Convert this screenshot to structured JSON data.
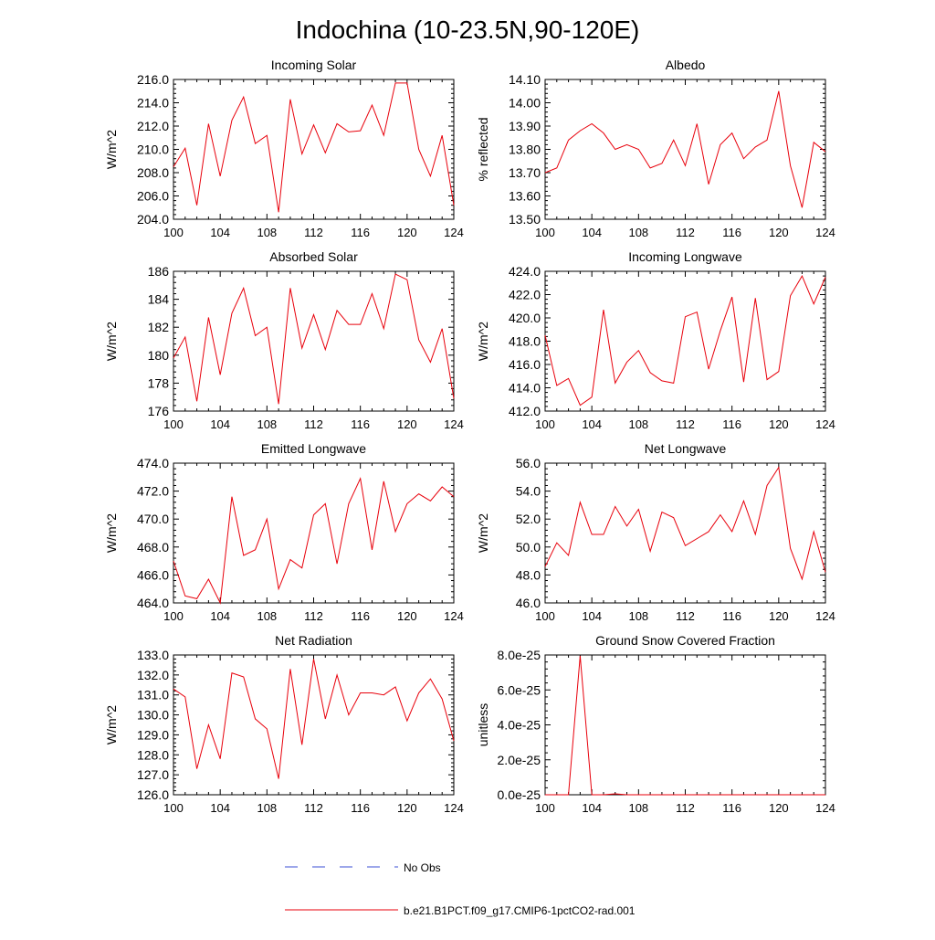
{
  "figure_title": "Indochina (10-23.5N,90-120E)",
  "colors": {
    "model": "#e8000b",
    "obs": "#3b4fd6",
    "axis": "#000000"
  },
  "legend": {
    "obs_label": "No Obs",
    "model_label": "b.e21.B1PCT.f09_g17.CMIP6-1pctCO2-rad.001"
  },
  "chart_data": [
    {
      "type": "line",
      "title": "Incoming Solar",
      "ylabel": "W/m^2",
      "xlim": [
        100,
        124
      ],
      "ylim": [
        204,
        216
      ],
      "xticks": [
        100,
        104,
        108,
        112,
        116,
        120,
        124
      ],
      "yticks": [
        204,
        206,
        208,
        210,
        212,
        214,
        216
      ],
      "ydecimals": 1,
      "x": [
        100,
        101,
        102,
        103,
        104,
        105,
        106,
        107,
        108,
        109,
        110,
        111,
        112,
        113,
        114,
        115,
        116,
        117,
        118,
        119,
        120,
        121,
        122,
        123,
        124
      ],
      "series": [
        {
          "values": [
            208.5,
            210.1,
            205.2,
            212.2,
            207.7,
            212.5,
            214.5,
            210.5,
            211.2,
            204.6,
            214.3,
            209.6,
            212.1,
            209.7,
            212.2,
            211.5,
            211.6,
            213.8,
            211.2,
            215.7,
            215.7,
            210.0,
            207.7,
            211.2,
            205.2
          ]
        }
      ]
    },
    {
      "type": "line",
      "title": "Albedo",
      "ylabel": "% reflected",
      "xlim": [
        100,
        124
      ],
      "ylim": [
        13.5,
        14.1
      ],
      "xticks": [
        100,
        104,
        108,
        112,
        116,
        120,
        124
      ],
      "yticks": [
        13.5,
        13.6,
        13.7,
        13.8,
        13.9,
        14.0,
        14.1
      ],
      "ydecimals": 2,
      "x": [
        100,
        101,
        102,
        103,
        104,
        105,
        106,
        107,
        108,
        109,
        110,
        111,
        112,
        113,
        114,
        115,
        116,
        117,
        118,
        119,
        120,
        121,
        122,
        123,
        124
      ],
      "series": [
        {
          "values": [
            13.7,
            13.72,
            13.84,
            13.88,
            13.91,
            13.87,
            13.8,
            13.82,
            13.8,
            13.72,
            13.74,
            13.84,
            13.73,
            13.91,
            13.65,
            13.82,
            13.87,
            13.76,
            13.81,
            13.84,
            14.05,
            13.73,
            13.55,
            13.83,
            13.79
          ]
        }
      ]
    },
    {
      "type": "line",
      "title": "Absorbed Solar",
      "ylabel": "W/m^2",
      "xlim": [
        100,
        124
      ],
      "ylim": [
        176,
        186
      ],
      "xticks": [
        100,
        104,
        108,
        112,
        116,
        120,
        124
      ],
      "yticks": [
        176,
        178,
        180,
        182,
        184,
        186
      ],
      "ydecimals": 0,
      "x": [
        100,
        101,
        102,
        103,
        104,
        105,
        106,
        107,
        108,
        109,
        110,
        111,
        112,
        113,
        114,
        115,
        116,
        117,
        118,
        119,
        120,
        121,
        122,
        123,
        124
      ],
      "series": [
        {
          "values": [
            179.8,
            181.3,
            176.7,
            182.7,
            178.6,
            183.0,
            184.8,
            181.4,
            182.0,
            176.5,
            184.8,
            180.5,
            182.9,
            180.4,
            183.2,
            182.2,
            182.2,
            184.4,
            181.9,
            185.8,
            185.4,
            181.1,
            179.5,
            181.9,
            176.9
          ]
        }
      ]
    },
    {
      "type": "line",
      "title": "Incoming Longwave",
      "ylabel": "W/m^2",
      "xlim": [
        100,
        124
      ],
      "ylim": [
        412,
        424
      ],
      "xticks": [
        100,
        104,
        108,
        112,
        116,
        120,
        124
      ],
      "yticks": [
        412,
        414,
        416,
        418,
        420,
        422,
        424
      ],
      "ydecimals": 1,
      "x": [
        100,
        101,
        102,
        103,
        104,
        105,
        106,
        107,
        108,
        109,
        110,
        111,
        112,
        113,
        114,
        115,
        116,
        117,
        118,
        119,
        120,
        121,
        122,
        123,
        124
      ],
      "series": [
        {
          "values": [
            418.5,
            414.2,
            414.8,
            412.5,
            413.2,
            420.7,
            414.4,
            416.2,
            417.2,
            415.3,
            414.6,
            414.4,
            420.1,
            420.5,
            415.6,
            418.9,
            421.8,
            414.5,
            421.7,
            414.7,
            415.4,
            421.9,
            423.6,
            421.2,
            423.5
          ]
        }
      ]
    },
    {
      "type": "line",
      "title": "Emitted Longwave",
      "ylabel": "W/m^2",
      "xlim": [
        100,
        124
      ],
      "ylim": [
        464,
        474
      ],
      "xticks": [
        100,
        104,
        108,
        112,
        116,
        120,
        124
      ],
      "yticks": [
        464,
        466,
        468,
        470,
        472,
        474
      ],
      "ydecimals": 1,
      "x": [
        100,
        101,
        102,
        103,
        104,
        105,
        106,
        107,
        108,
        109,
        110,
        111,
        112,
        113,
        114,
        115,
        116,
        117,
        118,
        119,
        120,
        121,
        122,
        123,
        124
      ],
      "series": [
        {
          "values": [
            467.0,
            464.5,
            464.3,
            465.7,
            464.0,
            471.6,
            467.4,
            467.8,
            470.0,
            465.0,
            467.1,
            466.5,
            470.3,
            471.1,
            466.8,
            471.1,
            472.9,
            467.8,
            472.7,
            469.1,
            471.1,
            471.8,
            471.3,
            472.3,
            471.6
          ]
        }
      ]
    },
    {
      "type": "line",
      "title": "Net Longwave",
      "ylabel": "W/m^2",
      "xlim": [
        100,
        124
      ],
      "ylim": [
        46,
        56
      ],
      "xticks": [
        100,
        104,
        108,
        112,
        116,
        120,
        124
      ],
      "yticks": [
        46,
        48,
        50,
        52,
        54,
        56
      ],
      "ydecimals": 1,
      "x": [
        100,
        101,
        102,
        103,
        104,
        105,
        106,
        107,
        108,
        109,
        110,
        111,
        112,
        113,
        114,
        115,
        116,
        117,
        118,
        119,
        120,
        121,
        122,
        123,
        124
      ],
      "series": [
        {
          "values": [
            48.6,
            50.3,
            49.4,
            53.2,
            50.9,
            50.9,
            52.9,
            51.5,
            52.7,
            49.7,
            52.5,
            52.1,
            50.1,
            50.6,
            51.1,
            52.3,
            51.1,
            53.3,
            50.9,
            54.4,
            55.7,
            49.9,
            47.7,
            51.1,
            48.2
          ]
        }
      ]
    },
    {
      "type": "line",
      "title": "Net Radiation",
      "ylabel": "W/m^2",
      "xlim": [
        100,
        124
      ],
      "ylim": [
        126,
        133
      ],
      "xticks": [
        100,
        104,
        108,
        112,
        116,
        120,
        124
      ],
      "yticks": [
        126,
        127,
        128,
        129,
        130,
        131,
        132,
        133
      ],
      "ydecimals": 1,
      "x": [
        100,
        101,
        102,
        103,
        104,
        105,
        106,
        107,
        108,
        109,
        110,
        111,
        112,
        113,
        114,
        115,
        116,
        117,
        118,
        119,
        120,
        121,
        122,
        123,
        124
      ],
      "series": [
        {
          "values": [
            131.3,
            130.9,
            127.3,
            129.5,
            127.8,
            132.1,
            131.9,
            129.8,
            129.3,
            126.8,
            132.3,
            128.5,
            132.8,
            129.8,
            132.0,
            130.0,
            131.1,
            131.1,
            131.0,
            131.4,
            129.7,
            131.1,
            131.8,
            130.8,
            128.7
          ]
        }
      ]
    },
    {
      "type": "line",
      "title": "Ground Snow Covered Fraction",
      "ylabel": "unitless",
      "xlim": [
        100,
        124
      ],
      "ylim": [
        0,
        8e-25
      ],
      "xticks": [
        100,
        104,
        108,
        112,
        116,
        120,
        124
      ],
      "yticks": [
        0,
        2e-25,
        4e-25,
        6e-25,
        8e-25
      ],
      "ytick_labels": [
        "0.0e-25",
        "2.0e-25",
        "4.0e-25",
        "6.0e-25",
        "8.0e-25"
      ],
      "x": [
        100,
        101,
        102,
        103,
        104,
        105,
        106,
        107,
        108,
        109,
        110,
        111,
        112,
        113,
        114,
        115,
        116,
        117,
        118,
        119,
        120,
        121,
        122,
        123,
        124
      ],
      "series": [
        {
          "values": [
            0,
            0,
            0,
            7.95e-25,
            0,
            0,
            5e-27,
            0,
            0,
            0,
            0,
            0,
            0,
            0,
            0,
            0,
            0,
            0,
            0,
            0,
            0,
            0,
            0,
            0,
            0
          ]
        }
      ]
    }
  ]
}
